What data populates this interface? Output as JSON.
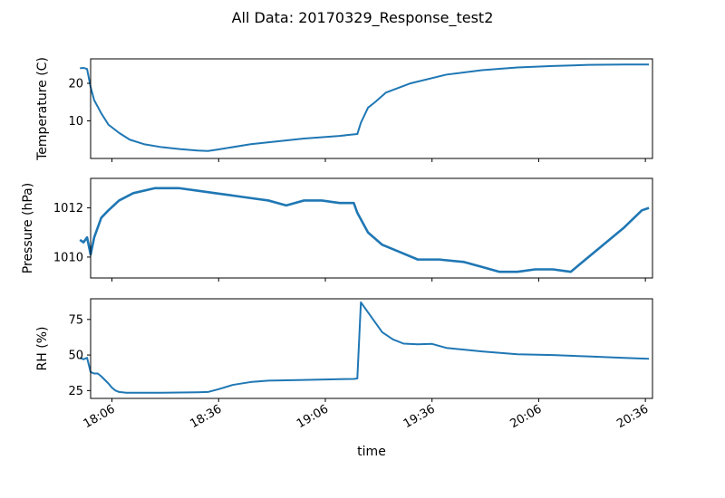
{
  "figure": {
    "title": "All Data: 20170329_Response_test2"
  },
  "chart_data": [
    {
      "type": "line",
      "title": "All Data: 20170329_Response_test2",
      "xlabel": "",
      "ylabel": "Temperature (C)",
      "xlim": [
        "18:00",
        "20:38"
      ],
      "ylim": [
        0,
        26.5
      ],
      "yticks": [
        10,
        20
      ],
      "xticks": [
        "18:06",
        "18:36",
        "19:06",
        "19:36",
        "20:06",
        "20:36"
      ],
      "color": "#1f77b4",
      "series": [
        {
          "x": [
            "17:57",
            "17:58",
            "17:59",
            "18:00",
            "18:01",
            "18:03",
            "18:05",
            "18:08",
            "18:11",
            "18:15",
            "18:20",
            "18:25",
            "18:30",
            "18:33",
            "18:36",
            "18:45",
            "19:00",
            "19:10",
            "19:15",
            "19:16",
            "19:18",
            "19:20",
            "19:23",
            "19:30",
            "19:40",
            "19:50",
            "20:00",
            "20:10",
            "20:20",
            "20:30",
            "20:37"
          ],
          "values": [
            24.0,
            24.1,
            23.8,
            19.0,
            15.5,
            12.0,
            9.0,
            6.8,
            5.0,
            3.8,
            3.0,
            2.5,
            2.1,
            2.0,
            2.4,
            3.8,
            5.3,
            6.0,
            6.5,
            9.5,
            13.5,
            15.0,
            17.5,
            20.0,
            22.3,
            23.5,
            24.2,
            24.6,
            24.9,
            25.0,
            25.0
          ]
        }
      ]
    },
    {
      "type": "line",
      "xlabel": "",
      "ylabel": "Pressure (hPa)",
      "xlim": [
        "18:00",
        "20:38"
      ],
      "ylim": [
        1009.15,
        1013.2
      ],
      "yticks": [
        1010,
        1012
      ],
      "xticks": [
        "18:06",
        "18:36",
        "19:06",
        "19:36",
        "20:06",
        "20:36"
      ],
      "color": "#1f77b4",
      "series": [
        {
          "x": [
            "17:57",
            "17:58",
            "17:59",
            "18:00",
            "18:01",
            "18:02",
            "18:03",
            "18:05",
            "18:08",
            "18:12",
            "18:18",
            "18:25",
            "18:30",
            "18:35",
            "18:40",
            "18:45",
            "18:50",
            "18:55",
            "19:00",
            "19:05",
            "19:10",
            "19:14",
            "19:15",
            "19:18",
            "19:22",
            "19:27",
            "19:32",
            "19:38",
            "19:45",
            "19:50",
            "19:55",
            "20:00",
            "20:05",
            "20:10",
            "20:15",
            "20:20",
            "20:25",
            "20:30",
            "20:35",
            "20:37"
          ],
          "values": [
            1010.7,
            1010.6,
            1010.8,
            1010.1,
            1010.8,
            1011.2,
            1011.6,
            1011.9,
            1012.3,
            1012.6,
            1012.8,
            1012.8,
            1012.7,
            1012.6,
            1012.5,
            1012.4,
            1012.3,
            1012.1,
            1012.3,
            1012.3,
            1012.2,
            1012.2,
            1011.8,
            1011.0,
            1010.5,
            1010.2,
            1009.9,
            1009.9,
            1009.8,
            1009.6,
            1009.4,
            1009.4,
            1009.5,
            1009.5,
            1009.4,
            1010.0,
            1010.6,
            1011.2,
            1011.9,
            1012.0
          ]
        }
      ]
    },
    {
      "type": "line",
      "xlabel": "time",
      "ylabel": "RH (%)",
      "xlim": [
        "18:00",
        "20:38"
      ],
      "ylim": [
        19.5,
        89.5
      ],
      "yticks": [
        25,
        50,
        75
      ],
      "xticks": [
        "18:06",
        "18:36",
        "19:06",
        "19:36",
        "20:06",
        "20:36"
      ],
      "color": "#1f77b4",
      "series": [
        {
          "x": [
            "17:57",
            "17:58",
            "17:59",
            "18:00",
            "18:01",
            "18:02",
            "18:03",
            "18:05",
            "18:06",
            "18:07",
            "18:08",
            "18:10",
            "18:12",
            "18:15",
            "18:20",
            "18:25",
            "18:30",
            "18:33",
            "18:36",
            "18:40",
            "18:45",
            "18:50",
            "19:00",
            "19:10",
            "19:14",
            "19:15",
            "19:16",
            "19:18",
            "19:20",
            "19:22",
            "19:25",
            "19:28",
            "19:32",
            "19:36",
            "19:40",
            "19:50",
            "20:00",
            "20:10",
            "20:20",
            "20:30",
            "20:37"
          ],
          "values": [
            48,
            47,
            48,
            38,
            37,
            37,
            35,
            30,
            27,
            25,
            24,
            23.5,
            23.5,
            23.5,
            23.5,
            23.6,
            23.8,
            24,
            26,
            29,
            31,
            32,
            32.5,
            33,
            33.2,
            33.5,
            87,
            80,
            73,
            66,
            61,
            58,
            57.5,
            57.8,
            55,
            52.5,
            50.5,
            50,
            49,
            48,
            47.3
          ]
        }
      ]
    }
  ]
}
